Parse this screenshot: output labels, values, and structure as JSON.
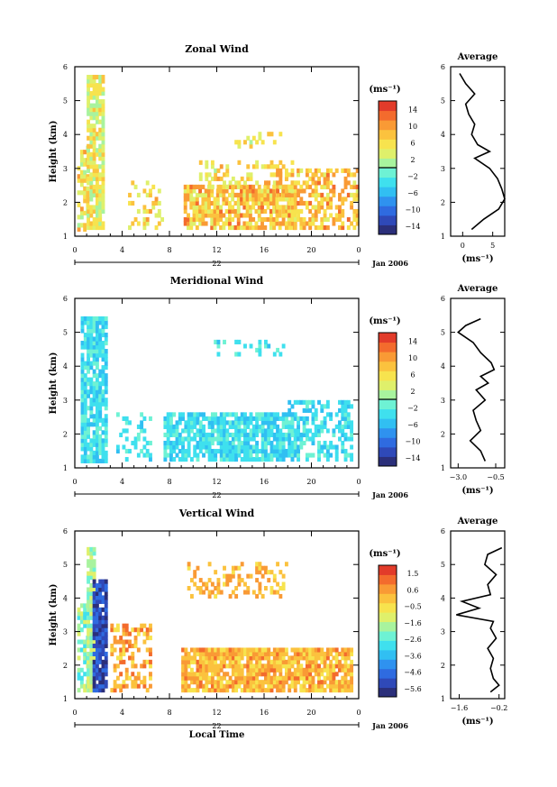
{
  "colors": {
    "colormap": [
      "#2b2f7a",
      "#2f49b8",
      "#2f6be0",
      "#2f92ef",
      "#31bff2",
      "#3fe0ee",
      "#6ef2d4",
      "#a8f39e",
      "#dff06b",
      "#f7e34e",
      "#fbc23e",
      "#f99a35",
      "#f36b2d",
      "#e23b2a"
    ]
  },
  "chart_data": [
    {
      "type": "heatmap",
      "title": "Zonal Wind",
      "xlabel": "",
      "ylabel": "Height (km)",
      "xlim": [
        0,
        24
      ],
      "x_ticks": [
        "0",
        "4",
        "8",
        "12",
        "16",
        "20",
        "0"
      ],
      "date_label": "22",
      "date_suffix": "Jan 2006",
      "ylim": [
        1,
        6
      ],
      "y_ticks": [
        "1",
        "2",
        "3",
        "4",
        "5",
        "6"
      ],
      "colorbar": {
        "unit": "(ms⁻¹)",
        "range": [
          -16,
          16
        ],
        "tick_labels": [
          "14",
          "10",
          "6",
          "2",
          "−2",
          "−6",
          "−10",
          "−14"
        ],
        "zero_line": 0
      },
      "cell_regions": [
        {
          "t0": 0.2,
          "t1": 1.2,
          "z0": 1.15,
          "z1": 3.6,
          "min": 0,
          "max": 10,
          "density": 0.55
        },
        {
          "t0": 1.0,
          "t1": 2.5,
          "z0": 1.2,
          "z1": 5.7,
          "min": 0,
          "max": 8,
          "density": 0.85
        },
        {
          "t0": 4.5,
          "t1": 7.5,
          "z0": 1.2,
          "z1": 2.6,
          "min": 2,
          "max": 10,
          "density": 0.3
        },
        {
          "t0": 9.2,
          "t1": 18.5,
          "z0": 1.2,
          "z1": 2.5,
          "min": 3,
          "max": 12,
          "density": 0.75
        },
        {
          "t0": 10.5,
          "t1": 18.5,
          "z0": 2.4,
          "z1": 3.2,
          "min": 2,
          "max": 10,
          "density": 0.35
        },
        {
          "t0": 13.5,
          "t1": 17.5,
          "z0": 3.6,
          "z1": 4.2,
          "min": 2,
          "max": 8,
          "density": 0.25
        },
        {
          "t0": 17.0,
          "t1": 24.0,
          "z0": 1.2,
          "z1": 3.0,
          "min": 4,
          "max": 12,
          "density": 0.55
        }
      ],
      "average_profile": {
        "title": "Average",
        "xlabel": "(ms⁻¹)",
        "xlim": [
          -2,
          7
        ],
        "x_ticks": [
          "0",
          "5"
        ],
        "x_tick_values": [
          0,
          5
        ],
        "z": [
          1.2,
          1.5,
          1.8,
          2.1,
          2.4,
          2.7,
          3.0,
          3.3,
          3.5,
          3.7,
          4.0,
          4.3,
          4.6,
          4.9,
          5.2,
          5.5,
          5.8
        ],
        "u": [
          1.5,
          3.5,
          6.0,
          7.0,
          6.5,
          5.8,
          4.5,
          2.0,
          4.5,
          2.5,
          1.5,
          2.0,
          1.0,
          0.5,
          2.0,
          0.5,
          -0.5
        ]
      }
    },
    {
      "type": "heatmap",
      "title": "Meridional Wind",
      "xlabel": "",
      "ylabel": "Height (km)",
      "xlim": [
        0,
        24
      ],
      "x_ticks": [
        "0",
        "4",
        "8",
        "12",
        "16",
        "20",
        "0"
      ],
      "date_label": "22",
      "date_suffix": "Jan 2006",
      "ylim": [
        1,
        6
      ],
      "y_ticks": [
        "1",
        "2",
        "3",
        "4",
        "5",
        "6"
      ],
      "colorbar": {
        "unit": "(ms⁻¹)",
        "range": [
          -16,
          16
        ],
        "tick_labels": [
          "14",
          "10",
          "6",
          "2",
          "−2",
          "−6",
          "−10",
          "−14"
        ],
        "zero_line": 0
      },
      "cell_regions": [
        {
          "t0": 0.5,
          "t1": 2.6,
          "z0": 1.15,
          "z1": 5.4,
          "min": -6,
          "max": -1,
          "density": 0.8
        },
        {
          "t0": 3.5,
          "t1": 6.5,
          "z0": 1.2,
          "z1": 2.6,
          "min": -5,
          "max": -1,
          "density": 0.25
        },
        {
          "t0": 7.5,
          "t1": 19.0,
          "z0": 1.2,
          "z1": 2.6,
          "min": -6,
          "max": -1,
          "density": 0.8
        },
        {
          "t0": 11.5,
          "t1": 18.0,
          "z0": 4.3,
          "z1": 4.7,
          "min": -5,
          "max": -1,
          "density": 0.3
        },
        {
          "t0": 18.0,
          "t1": 23.5,
          "z0": 1.2,
          "z1": 3.0,
          "min": -6,
          "max": -1,
          "density": 0.5
        }
      ],
      "average_profile": {
        "title": "Average",
        "xlabel": "(ms⁻¹)",
        "xlim": [
          -3.5,
          0.1
        ],
        "x_ticks": [
          "−3.0",
          "−0.5"
        ],
        "x_tick_values": [
          -3.0,
          -0.5
        ],
        "z": [
          1.2,
          1.5,
          1.8,
          2.1,
          2.4,
          2.7,
          3.0,
          3.3,
          3.5,
          3.7,
          3.9,
          4.1,
          4.4,
          4.7,
          5.0,
          5.2,
          5.4
        ],
        "u": [
          -1.2,
          -1.5,
          -2.2,
          -1.5,
          -1.8,
          -2.0,
          -1.2,
          -1.8,
          -1.0,
          -1.5,
          -0.6,
          -0.8,
          -1.5,
          -2.0,
          -3.0,
          -2.5,
          -1.5
        ]
      }
    },
    {
      "type": "heatmap",
      "title": "Vertical Wind",
      "xlabel": "Local Time",
      "ylabel": "Height (km)",
      "xlim": [
        0,
        24
      ],
      "x_ticks": [
        "0",
        "4",
        "8",
        "12",
        "16",
        "20",
        "0"
      ],
      "date_label": "22",
      "date_suffix": "Jan 2006",
      "ylim": [
        1,
        6
      ],
      "y_ticks": [
        "1",
        "2",
        "3",
        "4",
        "5",
        "6"
      ],
      "colorbar": {
        "unit": "(ms⁻¹)",
        "range": [
          -6.2,
          2.2
        ],
        "tick_labels": [
          "1.5",
          "0.6",
          "−0.5",
          "−1.6",
          "−2.6",
          "−3.6",
          "−4.6",
          "−5.6"
        ],
        "zero_line": null
      },
      "cell_regions": [
        {
          "t0": 0.2,
          "t1": 1.2,
          "z0": 1.2,
          "z1": 3.8,
          "min": -3.0,
          "max": -1.0,
          "density": 0.6
        },
        {
          "t0": 1.0,
          "t1": 1.6,
          "z0": 1.2,
          "z1": 5.5,
          "min": -2.5,
          "max": -0.8,
          "density": 0.9
        },
        {
          "t0": 1.5,
          "t1": 2.7,
          "z0": 1.2,
          "z1": 4.5,
          "min": -6.0,
          "max": -4.5,
          "density": 0.9
        },
        {
          "t0": 3.0,
          "t1": 6.5,
          "z0": 1.2,
          "z1": 3.2,
          "min": -0.5,
          "max": 1.5,
          "density": 0.45
        },
        {
          "t0": 9.0,
          "t1": 23.5,
          "z0": 1.2,
          "z1": 2.5,
          "min": -0.6,
          "max": 1.2,
          "density": 0.85
        },
        {
          "t0": 9.5,
          "t1": 18.0,
          "z0": 4.0,
          "z1": 5.0,
          "min": -0.5,
          "max": 1.0,
          "density": 0.3
        }
      ],
      "average_profile": {
        "title": "Average",
        "xlabel": "(ms⁻¹)",
        "xlim": [
          -1.9,
          0.0
        ],
        "x_ticks": [
          "−1.6",
          "−0.2"
        ],
        "x_tick_values": [
          -1.6,
          -0.2
        ],
        "z": [
          1.2,
          1.4,
          1.6,
          1.9,
          2.2,
          2.5,
          2.8,
          3.1,
          3.3,
          3.5,
          3.7,
          3.9,
          4.1,
          4.4,
          4.7,
          5.0,
          5.3,
          5.5
        ],
        "u": [
          -0.5,
          -0.2,
          -0.4,
          -0.5,
          -0.4,
          -0.6,
          -0.3,
          -0.5,
          -0.4,
          -1.7,
          -0.9,
          -1.5,
          -0.5,
          -0.6,
          -0.3,
          -0.7,
          -0.6,
          -0.1
        ]
      }
    }
  ]
}
